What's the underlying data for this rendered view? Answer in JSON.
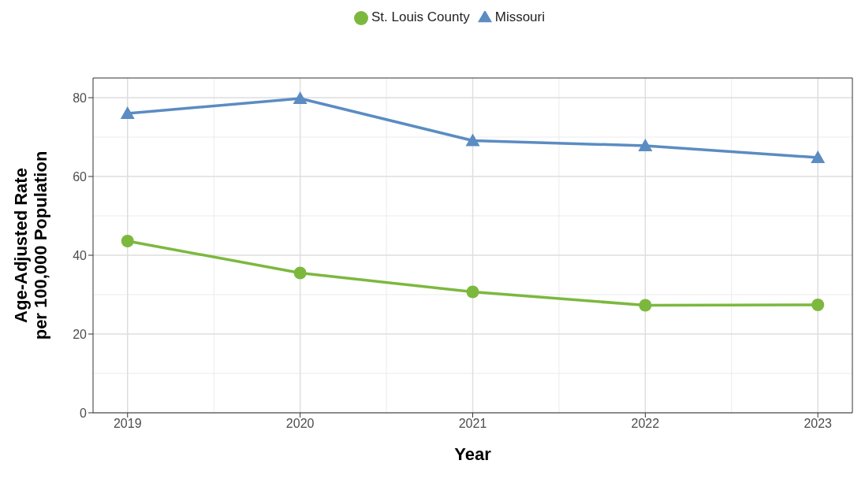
{
  "chart_data": {
    "type": "line",
    "xlabel": "Year",
    "ylabel": "Age-Adjusted Rate\nper 100,000 Population",
    "x": [
      2019,
      2020,
      2021,
      2022,
      2023
    ],
    "series": [
      {
        "name": "St. Louis County",
        "color": "#7cb83e",
        "marker": "circle",
        "values": [
          43.6,
          35.5,
          30.7,
          27.3,
          27.4
        ]
      },
      {
        "name": "Missouri",
        "color": "#5b8cc2",
        "marker": "triangle",
        "values": [
          76.0,
          79.8,
          69.1,
          67.8,
          64.8
        ]
      }
    ],
    "xlim": [
      2018.8,
      2023.2
    ],
    "xticks": [
      2019,
      2020,
      2021,
      2022,
      2023
    ],
    "ylim": [
      0,
      85
    ],
    "yticks": [
      0,
      20,
      40,
      60,
      80
    ],
    "grid": true,
    "legend": "top",
    "line_style": "solid"
  }
}
